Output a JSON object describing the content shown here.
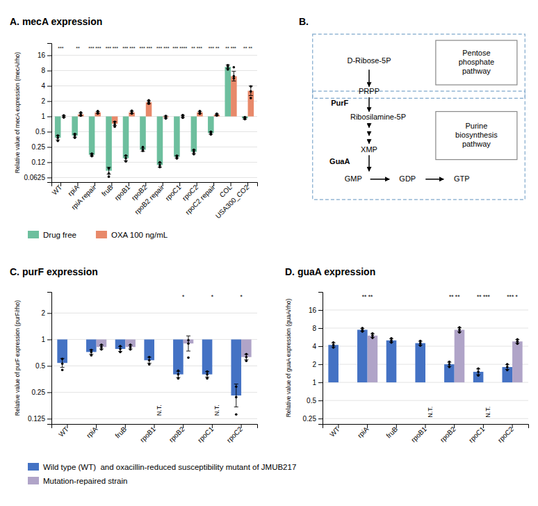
{
  "chart_data": [
    {
      "type": "bar",
      "title": "A. mecA expression",
      "y_label": "Relative value of mecA expression (mecA/rho)",
      "log": "y",
      "ylim": [
        0.05076577,
        27.857618
      ],
      "yticks": [
        0.0625,
        {
          "value": 0.125,
          "label": "0.12"
        },
        0.25,
        0.5,
        1,
        2,
        4,
        8,
        16
      ],
      "grid": true,
      "legend": "bottom",
      "categories": [
        "WT",
        "rpiA",
        "rpiA repair",
        "fruB",
        "rpoB1",
        "rpoB2",
        "rpoB2 repair",
        "rpoC1",
        "rpoC2",
        "rpoC2 repair",
        "COL",
        "USA300_CO2"
      ],
      "series": [
        {
          "name": "Drug free",
          "color": "#6dbf9e",
          "values": [
            0.38,
            0.42,
            0.175,
            0.085,
            0.15,
            0.22,
            0.11,
            0.16,
            0.2,
            0.47,
            9.5,
            0.92
          ],
          "points": [
            [
              0.33,
              0.38,
              0.42
            ],
            [
              0.38,
              0.42,
              0.45
            ],
            [
              0.165,
              0.175,
              0.185
            ],
            [
              0.065,
              0.075,
              0.095
            ],
            [
              0.13,
              0.15,
              0.17
            ],
            [
              0.21,
              0.22,
              0.25
            ],
            [
              0.1,
              0.11,
              0.125
            ],
            [
              0.148,
              0.16,
              0.168
            ],
            [
              0.18,
              0.2,
              0.22
            ],
            [
              0.44,
              0.47,
              0.5
            ],
            [
              8.4,
              9.5,
              10.2
            ],
            [
              0.88,
              0.92,
              0.97
            ]
          ],
          "error_low": [
            0.344207,
            0.391836,
            0.167013,
            0.072688,
            0.134429,
            0.204366,
            0.10039,
            0.151862,
            0.184262,
            0.446097,
            8.767793,
            0.8841
          ],
          "error_high": [
            0.419515,
            0.450189,
            0.183369,
            0.099398,
            0.167375,
            0.23683,
            0.12053,
            0.168574,
            0.217082,
            0.495184,
            10.293355,
            0.957358
          ]
        },
        {
          "name": "OXA 100 ng/mL",
          "color": "#e8896a",
          "values": [
            1.0,
            1.1,
            1.2,
            0.72,
            1.2,
            1.9,
            0.97,
            1.0,
            1.2,
            1.08,
            6.2,
            3.2
          ],
          "points": [
            [
              0.95,
              1.0,
              1.05
            ],
            [
              1.03,
              1.1,
              1.2
            ],
            [
              1.14,
              1.2,
              1.27
            ],
            [
              0.63,
              0.7,
              0.78
            ],
            [
              1.14,
              1.2,
              1.3
            ],
            [
              1.78,
              1.9,
              2.08
            ],
            [
              0.91,
              0.97,
              1.02
            ],
            [
              0.94,
              1.0,
              1.06
            ],
            [
              1.13,
              1.2,
              1.27
            ],
            [
              1.04,
              1.08,
              1.13
            ],
            [
              5.6,
              6.2,
              9.3
            ],
            [
              2.3,
              3.1,
              3.9
            ]
          ],
          "error_low": [
            0.959958,
            1.033288,
            1.148226,
            0.659879,
            1.136867,
            1.782448,
            0.925744,
            0.952127,
            1.144115,
            1.043968,
            4.980071,
            2.577851
          ],
          "error_high": [
            1.041712,
            1.171019,
            1.254108,
            0.785598,
            1.26664,
            2.025305,
            1.016372,
            1.05028,
            1.258615,
            1.117276,
            7.718764,
            3.972301
          ]
        }
      ],
      "annotations": [
        {
          "text": "***",
          "x": "WT"
        },
        {
          "text": "**",
          "x": "rpiA"
        },
        {
          "text": "*** ***",
          "x": "rpiA repair"
        },
        {
          "text": "*** ***",
          "x": "fruB"
        },
        {
          "text": "*** ***",
          "x": "rpoB1"
        },
        {
          "text": "*** ***",
          "x": "rpoB2"
        },
        {
          "text": "*** ***",
          "x": "rpoB2 repair"
        },
        {
          "text": "*** ****",
          "x": "rpoC1"
        },
        {
          "text": "** ***",
          "x": "rpoC2"
        },
        {
          "text": "*** **",
          "x": "rpoC2 repair"
        },
        {
          "text": "** ***",
          "x": "COL"
        },
        {
          "text": "** **",
          "x": "USA300_CO2"
        }
      ]
    },
    {
      "type": "diagram",
      "title": "B.",
      "annotations": [
        "Pentose\nphosphate\npathway",
        "Purine\nbiosynthesis\npathway",
        "D-Ribose-5P",
        "PRPP",
        "PurF",
        "Ribosilamine-5P",
        "XMP",
        "GuaA",
        "GMP",
        "GDP",
        "GTP"
      ]
    },
    {
      "type": "bar",
      "title": "C. purF expression",
      "y_label": "Relative value of purF expression (purF/rho)",
      "log": "y",
      "ylim": [
        0.10881882,
        3.4822022
      ],
      "yticks": [
        0.125,
        0.25,
        0.5,
        1,
        2
      ],
      "grid": true,
      "legend": "bottom",
      "categories": [
        "WT",
        "rpiA",
        "fruB",
        "rpoB1",
        "rpoB2",
        "rpoC1",
        "rpoC2"
      ],
      "series": [
        {
          "name": "Wild type (WT)  and oxacillin-reduced susceptibility mutant of JMUB217",
          "color": "#4472c4",
          "values": [
            0.54,
            0.72,
            0.78,
            0.58,
            0.4,
            0.4,
            0.23
          ],
          "points": [
            [
              0.45,
              0.53,
              0.6
            ],
            [
              0.66,
              0.72,
              0.76
            ],
            [
              0.72,
              0.78,
              0.84
            ],
            [
              0.52,
              0.58,
              0.63
            ],
            [
              0.36,
              0.4,
              0.44
            ],
            [
              0.36,
              0.4,
              0.43
            ],
            [
              0.14,
              0.22,
              0.29
            ]
          ],
          "error_low": [
            0.479985,
            0.679347,
            0.732416,
            0.536164,
            0.368524,
            0.371856,
            0.170359
          ],
          "error_high": [
            0.607519,
            0.763086,
            0.830676,
            0.62742,
            0.434164,
            0.430274,
            0.310521
          ]
        },
        {
          "name": "Mutation-repaired strain",
          "color": "#b0a4c8",
          "values": [
            null,
            0.82,
            0.82,
            null,
            0.9,
            null,
            0.63
          ],
          "points": [
            null,
            [
              0.77,
              0.82,
              0.87
            ],
            [
              0.77,
              0.82,
              0.87
            ],
            null,
            [
              0.62,
              0.9,
              0.98
            ],
            null,
            [
              0.57,
              0.63,
              0.68
            ]
          ],
          "error_low": [
            null,
            0.780121,
            0.780121,
            null,
            0.73773,
            null,
            0.586085
          ],
          "error_high": [
            null,
            0.861918,
            0.861918,
            null,
            1.097962,
            null,
            0.677206
          ]
        }
      ],
      "annotations": [
        {
          "text": "*",
          "x": "rpoB2"
        },
        {
          "text": "*",
          "x": "rpoC1"
        },
        {
          "text": "*",
          "x": "rpoC2"
        },
        {
          "text": "N.T.",
          "x": "rpoB1",
          "y": 0.135
        },
        {
          "text": "N.T.",
          "x": "rpoC1",
          "y": 0.135
        }
      ]
    },
    {
      "type": "bar",
      "title": "D. guaA expression",
      "y_label": "Relative value of guaA expression (guaA/rho)",
      "log": "y",
      "ylim": [
        0.2030631,
        32
      ],
      "yticks": [
        0.25,
        0.5,
        1,
        2,
        4,
        8,
        16
      ],
      "grid": true,
      "categories": [
        "WT",
        "rpiA",
        "fruB",
        "rpoB1",
        "rpoB2",
        "rpoC1",
        "rpoC2"
      ],
      "series": [
        {
          "color": "#4472c4",
          "values": [
            4.2,
            7.5,
            5.0,
            4.5,
            2.0,
            1.5,
            1.8
          ],
          "points": [
            [
              3.8,
              4.2,
              4.6
            ],
            [
              7.0,
              7.5,
              8.0
            ],
            [
              4.6,
              5.0,
              5.4
            ],
            [
              4.1,
              4.5,
              4.9
            ],
            [
              1.8,
              2.0,
              2.2
            ],
            [
              1.3,
              1.5,
              1.7
            ],
            [
              1.6,
              1.8,
              2.0
            ]
          ],
          "error_low": [
            3.884749,
            7.102024,
            4.683104,
            4.184067,
            1.842619,
            1.34429,
            1.643189
          ],
          "error_high": [
            4.540834,
            7.920278,
            5.33834,
            4.839791,
            2.170822,
            1.673747,
            1.971776
          ]
        },
        {
          "color": "#b0a4c8",
          "values": [
            null,
            6.0,
            null,
            null,
            7.5,
            null,
            4.8
          ],
          "points": [
            null,
            [
              5.5,
              6.0,
              6.5
            ],
            null,
            null,
            [
              6.8,
              7.5,
              8.2
            ],
            null,
            [
              4.4,
              4.8,
              5.2
            ]
          ],
          "error_low": [
            null,
            5.604334,
            null,
            null,
            6.94793,
            null,
            4.483467
          ],
          "error_high": [
            null,
            6.4236,
            null,
            null,
            8.095935,
            null,
            5.13888
          ]
        }
      ],
      "annotations": [
        {
          "text": "** **",
          "x": "rpiA"
        },
        {
          "text": "** **",
          "x": "rpoB2"
        },
        {
          "text": "** ***",
          "x": "rpoC1"
        },
        {
          "text": "*** *",
          "x": "rpoC2"
        },
        {
          "text": "N.T.",
          "x": "rpoB1",
          "y": 0.26
        },
        {
          "text": "N.T.",
          "x": "rpoC1",
          "y": 0.26
        }
      ]
    }
  ]
}
